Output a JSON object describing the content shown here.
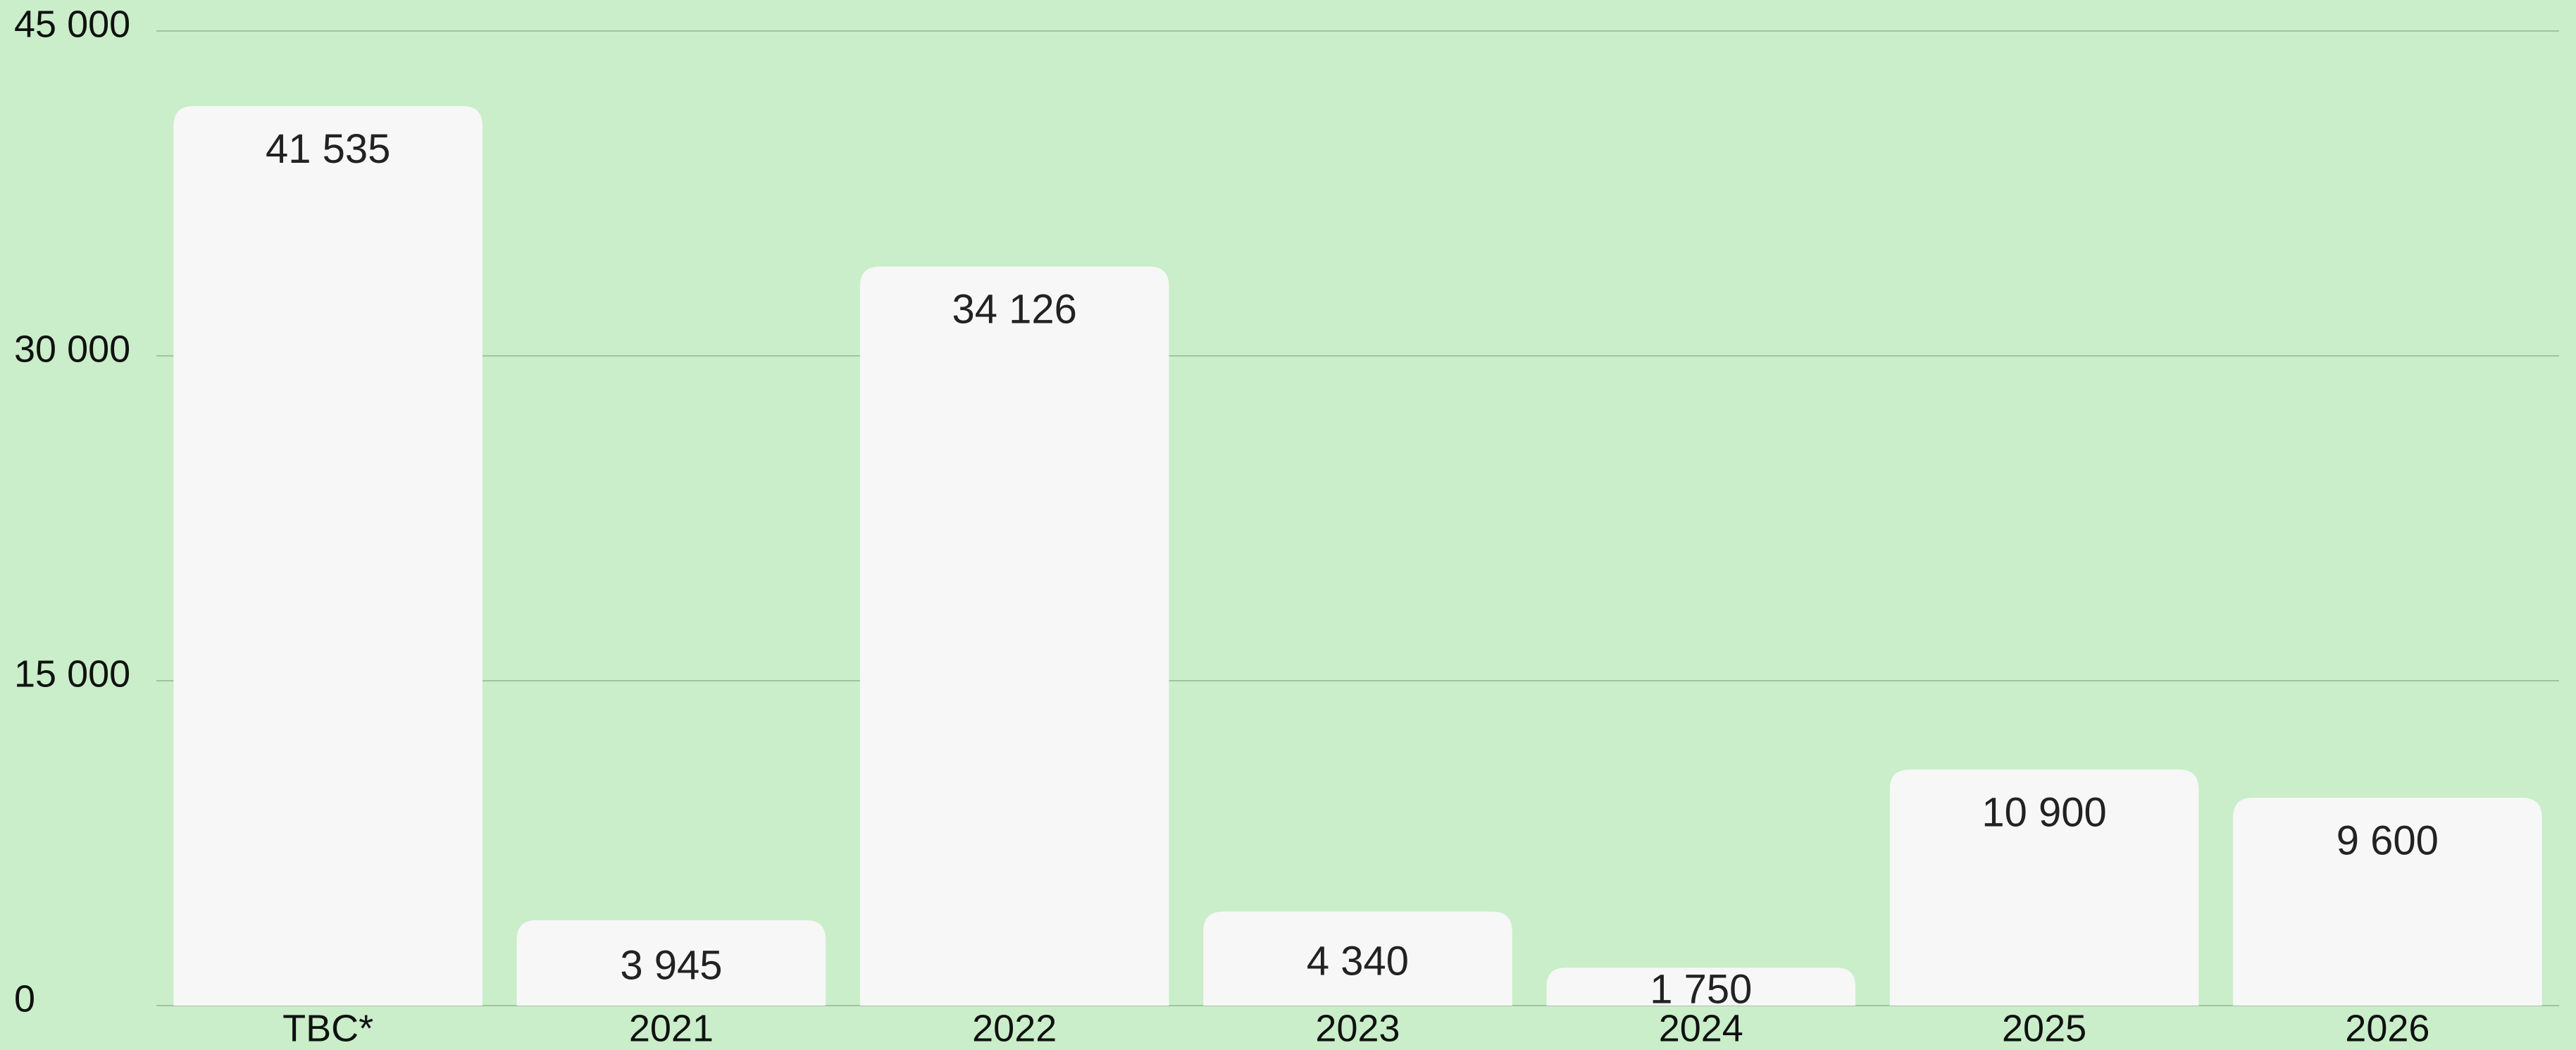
{
  "chart_data": {
    "type": "bar",
    "categories": [
      "TBC*",
      "2021",
      "2022",
      "2023",
      "2024",
      "2025",
      "2026"
    ],
    "values": [
      41535,
      3945,
      34126,
      4340,
      1750,
      10900,
      9600
    ],
    "value_labels": [
      "41 535",
      "3 945",
      "34 126",
      "4 340",
      "1 750",
      "10 900",
      "9 600"
    ],
    "color": "#f7f7f7",
    "ylim": [
      0,
      45000
    ],
    "yticks": [
      0,
      {
        "value": 15000,
        "label": "15 000"
      },
      {
        "value": 30000,
        "label": "30 000"
      },
      {
        "value": 45000,
        "label": "45 000"
      }
    ],
    "grid": true
  }
}
